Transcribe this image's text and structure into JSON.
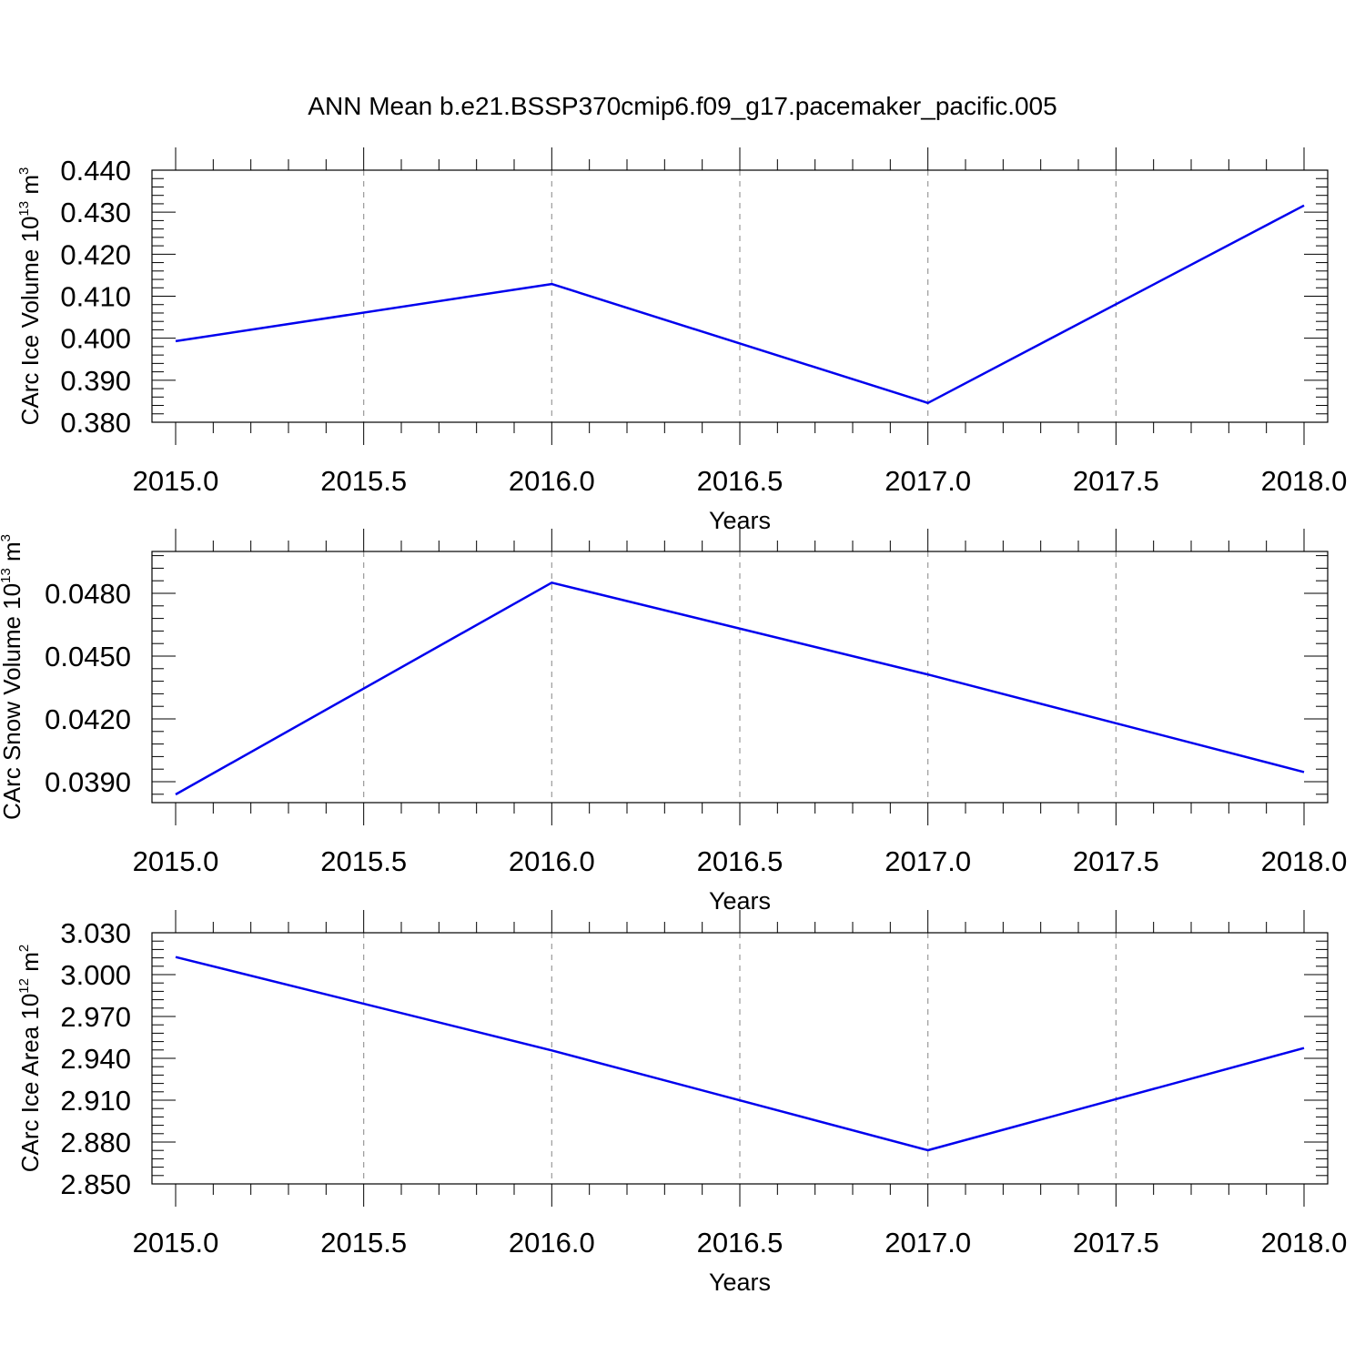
{
  "title": "ANN Mean b.e21.BSSP370cmip6.f09_g17.pacemaker_pacific.005",
  "colors": {
    "series": "#0000ee",
    "grid": "#9a9a9a",
    "frame": "#000000"
  },
  "chart_data": [
    {
      "type": "line",
      "xlabel": "Years",
      "ylabel": {
        "text": "CArc Ice Volume 10",
        "exponent": "13",
        "unit": " m",
        "unit_exponent": "3"
      },
      "xlim": [
        2015.0,
        2018.0
      ],
      "ylim": [
        0.38,
        0.44
      ],
      "xticks": [
        "2015.0",
        "2015.5",
        "2016.0",
        "2016.5",
        "2017.0",
        "2017.5",
        "2018.0"
      ],
      "yticks": [
        "0.380",
        "0.390",
        "0.400",
        "0.410",
        "0.420",
        "0.430",
        "0.440"
      ],
      "grid": "vertical dashed",
      "x": [
        2015,
        2016,
        2017,
        2018
      ],
      "y": [
        0.3993,
        0.4129,
        0.3846,
        0.4316
      ]
    },
    {
      "type": "line",
      "xlabel": "Years",
      "ylabel": {
        "text": "CArc Snow Volume 10",
        "exponent": "13",
        "unit": " m",
        "unit_exponent": "3"
      },
      "xlim": [
        2015.0,
        2018.0
      ],
      "ylim": [
        0.038,
        0.05
      ],
      "xticks": [
        "2015.0",
        "2015.5",
        "2016.0",
        "2016.5",
        "2017.0",
        "2017.5",
        "2018.0"
      ],
      "yticks": [
        "0.0390",
        "0.0420",
        "0.0450",
        "0.0480"
      ],
      "grid": "vertical dashed",
      "x": [
        2015,
        2016,
        2017,
        2018
      ],
      "y": [
        0.03839,
        0.04851,
        0.04412,
        0.03946
      ]
    },
    {
      "type": "line",
      "xlabel": "Years",
      "ylabel": {
        "text": "CArc Ice Area 10",
        "exponent": "12",
        "unit": " m",
        "unit_exponent": "2"
      },
      "xlim": [
        2015.0,
        2018.0
      ],
      "ylim": [
        2.85,
        3.03
      ],
      "xticks": [
        "2015.0",
        "2015.5",
        "2016.0",
        "2016.5",
        "2017.0",
        "2017.5",
        "2018.0"
      ],
      "yticks": [
        "2.850",
        "2.880",
        "2.910",
        "2.940",
        "2.970",
        "3.000",
        "3.030"
      ],
      "grid": "vertical dashed",
      "x": [
        2015,
        2016,
        2017,
        2018
      ],
      "y": [
        3.0126,
        2.9457,
        2.8741,
        2.9474
      ]
    }
  ]
}
